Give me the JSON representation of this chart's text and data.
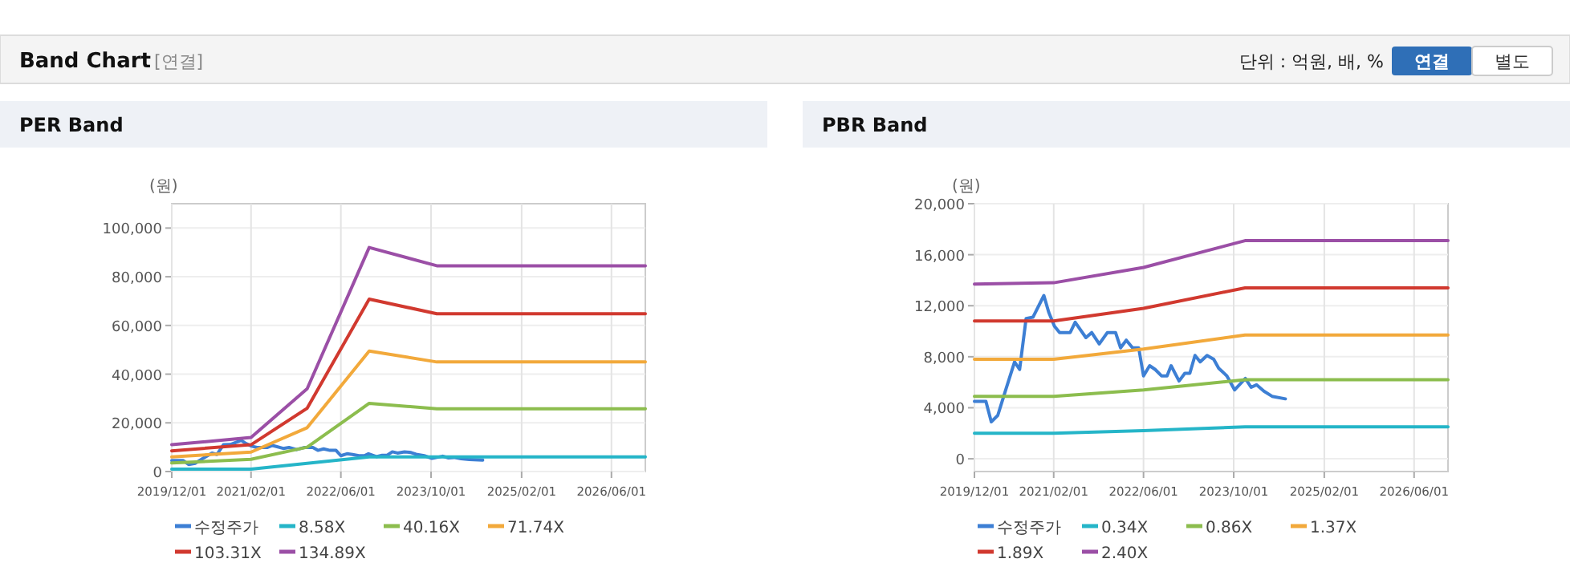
{
  "chart_data": [
    {
      "type": "other",
      "title": "Band Chart",
      "subtitle": "[연결]",
      "annotations": [
        "단위 : 억원, 배, %",
        "연결",
        "별도"
      ]
    },
    {
      "type": "line",
      "title": "PER Band",
      "ylabel": "(원)",
      "xlim": [
        "2019-12-01",
        "2026-12-01"
      ],
      "xticks": [
        {
          "value": "2019-12-01",
          "label": "2019/12/01"
        },
        {
          "value": "2021-02-01",
          "label": "2021/02/01"
        },
        {
          "value": "2022-06-01",
          "label": "2022/06/01"
        },
        {
          "value": "2023-10-01",
          "label": "2023/10/01"
        },
        {
          "value": "2025-02-01",
          "label": "2025/02/01"
        },
        {
          "value": "2026-06-01",
          "label": "2026/06/01"
        }
      ],
      "ylim": [
        0,
        110000
      ],
      "yticks": [
        {
          "value": 0,
          "label": "0"
        },
        {
          "value": 20000,
          "label": "20,000"
        },
        {
          "value": 40000,
          "label": "40,000"
        },
        {
          "value": 60000,
          "label": "60,000"
        },
        {
          "value": 80000,
          "label": "80,000"
        },
        {
          "value": 100000,
          "label": "100,000"
        }
      ],
      "grid": true,
      "legend": "bottom",
      "marker": "none",
      "line_style": "solid",
      "series": [
        {
          "name": "수정주가",
          "color": "#3d7fd4",
          "x": [
            "2019-12-01",
            "2020-02-01",
            "2020-03-01",
            "2020-04-05",
            "2020-05-20",
            "2020-07-05",
            "2020-08-01",
            "2020-09-05",
            "2020-10-12",
            "2020-12-10",
            "2021-01-05",
            "2021-02-05",
            "2021-03-05",
            "2021-05-01",
            "2021-05-28",
            "2021-07-25",
            "2021-08-25",
            "2021-10-05",
            "2021-11-18",
            "2022-01-01",
            "2022-01-28",
            "2022-02-28",
            "2022-04-03",
            "2022-05-06",
            "2022-06-01",
            "2022-07-04",
            "2022-08-03",
            "2022-09-06",
            "2022-10-06",
            "2022-10-28",
            "2022-12-10",
            "2023-01-10",
            "2023-02-06",
            "2023-03-06",
            "2023-04-03",
            "2023-05-10",
            "2023-06-15",
            "2023-07-12",
            "2023-08-25",
            "2023-10-06",
            "2023-12-03",
            "2024-01-03",
            "2024-02-01",
            "2024-03-12",
            "2024-04-25",
            "2024-07-06"
          ],
          "values": [
            4500,
            4500,
            2900,
            3400,
            5500,
            7600,
            7000,
            11000,
            11100,
            12800,
            11500,
            10400,
            9900,
            9900,
            10700,
            9500,
            9900,
            9000,
            9900,
            9900,
            8700,
            9300,
            8700,
            8700,
            6500,
            7300,
            7000,
            6500,
            6500,
            7300,
            6100,
            6700,
            6700,
            8100,
            7600,
            8100,
            7800,
            7100,
            6500,
            5400,
            6300,
            5600,
            5800,
            5300,
            4900,
            4700
          ]
        },
        {
          "name": "8.58X",
          "color": "#25b5c8",
          "x": [
            "2019-12-01",
            "2021-02-01",
            "2022-11-01",
            "2026-12-01"
          ],
          "values": [
            1000,
            1000,
            6000,
            6000
          ]
        },
        {
          "name": "40.16X",
          "color": "#8cbd4e",
          "x": [
            "2019-12-01",
            "2021-02-01",
            "2021-12-01",
            "2022-11-01",
            "2023-11-01",
            "2026-12-01"
          ],
          "values": [
            3500,
            5000,
            10000,
            28000,
            25800,
            25800
          ]
        },
        {
          "name": "71.74X",
          "color": "#f2a93b",
          "x": [
            "2019-12-01",
            "2021-02-01",
            "2021-12-01",
            "2022-11-01",
            "2023-11-01",
            "2026-12-01"
          ],
          "values": [
            6000,
            8000,
            18000,
            49500,
            45000,
            45000
          ]
        },
        {
          "name": "103.31X",
          "color": "#d1392f",
          "x": [
            "2019-12-01",
            "2021-02-01",
            "2021-12-01",
            "2022-11-01",
            "2023-11-01",
            "2026-12-01"
          ],
          "values": [
            8500,
            11000,
            26000,
            70800,
            64800,
            64800
          ]
        },
        {
          "name": "134.89X",
          "color": "#9b4fa6",
          "x": [
            "2019-12-01",
            "2021-02-01",
            "2021-12-01",
            "2022-11-01",
            "2023-11-01",
            "2026-12-01"
          ],
          "values": [
            11000,
            14000,
            34000,
            92000,
            84500,
            84500
          ]
        }
      ]
    },
    {
      "type": "line",
      "title": "PBR Band",
      "ylabel": "(원)",
      "xlim": [
        "2019-12-01",
        "2026-12-01"
      ],
      "xticks": [
        {
          "value": "2019-12-01",
          "label": "2019/12/01"
        },
        {
          "value": "2021-02-01",
          "label": "2021/02/01"
        },
        {
          "value": "2022-06-01",
          "label": "2022/06/01"
        },
        {
          "value": "2023-10-01",
          "label": "2023/10/01"
        },
        {
          "value": "2025-02-01",
          "label": "2025/02/01"
        },
        {
          "value": "2026-06-01",
          "label": "2026/06/01"
        }
      ],
      "ylim": [
        -1000,
        20000
      ],
      "yticks": [
        {
          "value": 0,
          "label": "0"
        },
        {
          "value": 4000,
          "label": "4,000"
        },
        {
          "value": 8000,
          "label": "8,000"
        },
        {
          "value": 12000,
          "label": "12,000"
        },
        {
          "value": 16000,
          "label": "16,000"
        },
        {
          "value": 20000,
          "label": "20,000"
        }
      ],
      "grid": true,
      "legend": "bottom",
      "marker": "none",
      "line_style": "solid",
      "series": [
        {
          "name": "수정주가",
          "color": "#3d7fd4",
          "x": [
            "2019-12-01",
            "2020-02-01",
            "2020-03-01",
            "2020-04-05",
            "2020-05-20",
            "2020-07-05",
            "2020-08-01",
            "2020-09-05",
            "2020-10-12",
            "2020-12-10",
            "2021-01-05",
            "2021-02-05",
            "2021-03-05",
            "2021-05-01",
            "2021-05-28",
            "2021-07-25",
            "2021-08-25",
            "2021-10-05",
            "2021-11-18",
            "2022-01-01",
            "2022-01-28",
            "2022-02-28",
            "2022-04-03",
            "2022-05-06",
            "2022-06-01",
            "2022-07-04",
            "2022-08-03",
            "2022-09-06",
            "2022-10-06",
            "2022-10-28",
            "2022-12-10",
            "2023-01-10",
            "2023-02-06",
            "2023-03-06",
            "2023-04-03",
            "2023-05-10",
            "2023-06-15",
            "2023-07-12",
            "2023-08-25",
            "2023-10-06",
            "2023-12-03",
            "2024-01-03",
            "2024-02-01",
            "2024-03-12",
            "2024-04-25",
            "2024-07-06"
          ],
          "values": [
            4500,
            4500,
            2900,
            3400,
            5500,
            7600,
            7000,
            11000,
            11100,
            12800,
            11500,
            10400,
            9900,
            9900,
            10700,
            9500,
            9900,
            9000,
            9900,
            9900,
            8700,
            9300,
            8700,
            8700,
            6500,
            7300,
            7000,
            6500,
            6500,
            7300,
            6100,
            6700,
            6700,
            8100,
            7600,
            8100,
            7800,
            7100,
            6500,
            5400,
            6300,
            5600,
            5800,
            5300,
            4900,
            4700
          ]
        },
        {
          "name": "0.34X",
          "color": "#25b5c8",
          "x": [
            "2019-12-01",
            "2021-02-01",
            "2022-06-01",
            "2023-12-01",
            "2026-12-01"
          ],
          "values": [
            2000,
            2000,
            2200,
            2500,
            2500
          ]
        },
        {
          "name": "0.86X",
          "color": "#8cbd4e",
          "x": [
            "2019-12-01",
            "2021-02-01",
            "2022-06-01",
            "2023-12-01",
            "2026-12-01"
          ],
          "values": [
            4900,
            4900,
            5400,
            6200,
            6200
          ]
        },
        {
          "name": "1.37X",
          "color": "#f2a93b",
          "x": [
            "2019-12-01",
            "2021-02-01",
            "2022-06-01",
            "2023-12-01",
            "2026-12-01"
          ],
          "values": [
            7800,
            7800,
            8600,
            9700,
            9700
          ]
        },
        {
          "name": "1.89X",
          "color": "#d1392f",
          "x": [
            "2019-12-01",
            "2021-02-01",
            "2022-06-01",
            "2023-12-01",
            "2026-12-01"
          ],
          "values": [
            10800,
            10800,
            11800,
            13400,
            13400
          ]
        },
        {
          "name": "2.40X",
          "color": "#9b4fa6",
          "x": [
            "2019-12-01",
            "2021-02-01",
            "2022-06-01",
            "2023-12-01",
            "2026-12-01"
          ],
          "values": [
            13700,
            13800,
            15000,
            17100,
            17100
          ]
        }
      ]
    }
  ]
}
